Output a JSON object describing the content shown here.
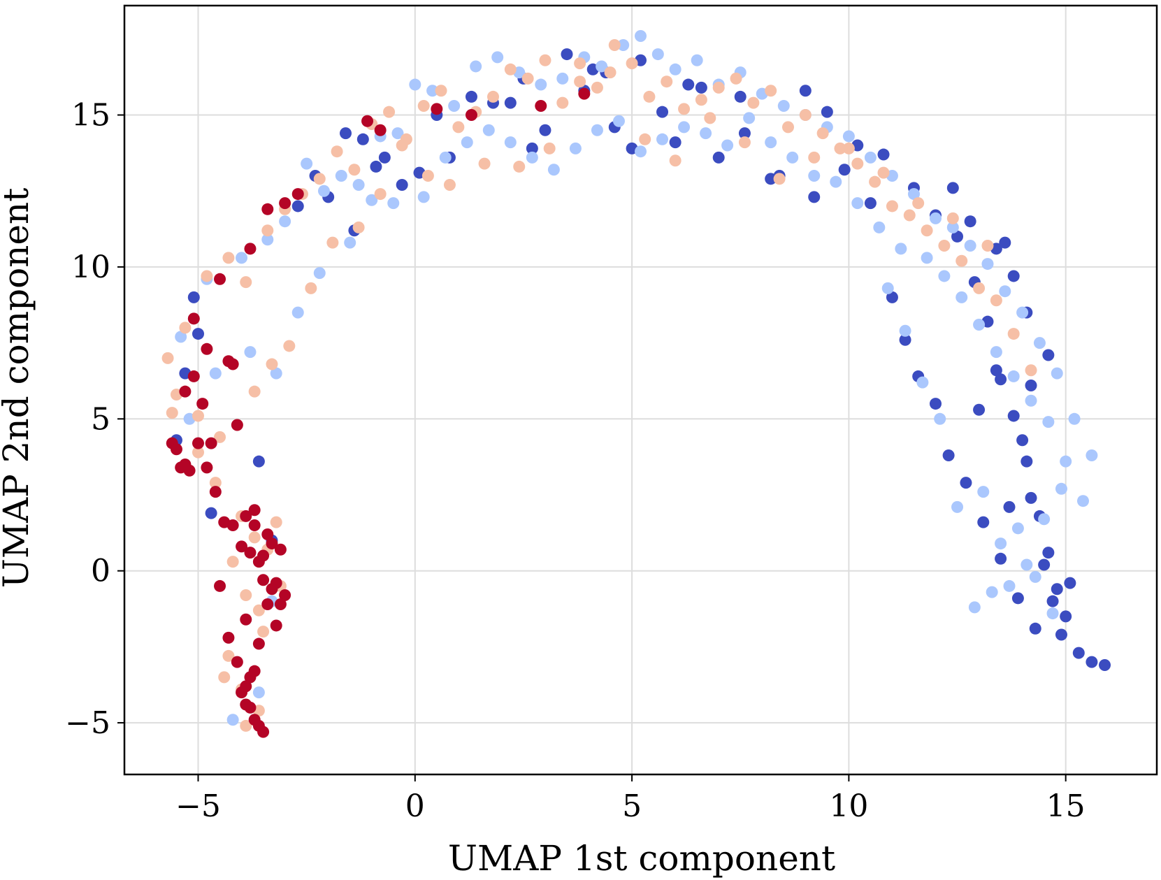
{
  "chart_data": {
    "type": "scatter",
    "title": "",
    "xlabel": "UMAP 1st component",
    "ylabel": "UMAP 2nd component",
    "xlim": [
      -6.7,
      17.1
    ],
    "ylim": [
      -6.7,
      18.6
    ],
    "grid": true,
    "legend": "none",
    "xticks": [
      -5,
      0,
      5,
      10,
      15
    ],
    "xtick_labels": [
      "−5",
      "0",
      "5",
      "10",
      "15"
    ],
    "yticks": [
      -5,
      0,
      5,
      10,
      15
    ],
    "ytick_labels": [
      "−5",
      "0",
      "5",
      "10",
      "15"
    ],
    "series": [
      {
        "name": "dark-blue",
        "color": "#3b4cc0",
        "x": [
          -5.0,
          -5.1,
          -3.6,
          -2.7,
          -2.3,
          -1.6,
          -1.2,
          -0.9,
          -0.3,
          0.5,
          1.3,
          2.2,
          2.7,
          3.5,
          4.1,
          4.6,
          5.2,
          6.0,
          6.3,
          7.0,
          7.5,
          8.2,
          9.0,
          9.5,
          10.2,
          10.8,
          11.5,
          12.0,
          12.5,
          12.9,
          13.2,
          13.5,
          13.8,
          14.0,
          14.2,
          14.4,
          14.6,
          14.8,
          15.0,
          15.3,
          15.6,
          15.9,
          14.3,
          13.9,
          13.5,
          13.1,
          12.7,
          12.3,
          12.0,
          11.6,
          11.3,
          11.0,
          10.5,
          9.9,
          -5.3,
          -5.5,
          -4.7,
          -3.3,
          -2.0,
          -1.4,
          -0.7,
          0.1,
          0.8,
          1.8,
          2.5,
          3.0,
          3.9,
          4.4,
          5.0,
          5.7,
          6.6,
          7.6,
          8.4,
          9.2,
          13.0,
          13.4,
          13.7,
          14.1,
          14.5,
          14.7,
          14.9,
          15.1,
          14.1,
          13.8,
          13.4,
          14.6,
          14.2,
          13.6,
          12.8,
          12.4
        ],
        "y": [
          7.8,
          9.0,
          3.6,
          12.0,
          13.0,
          14.4,
          14.2,
          13.3,
          12.7,
          15.0,
          15.6,
          15.4,
          13.9,
          17.0,
          16.5,
          14.6,
          16.8,
          14.1,
          16.0,
          13.6,
          15.6,
          12.9,
          15.8,
          15.1,
          14.0,
          13.7,
          12.6,
          11.7,
          11.0,
          9.5,
          8.2,
          6.3,
          5.1,
          4.3,
          2.4,
          1.8,
          0.6,
          -0.6,
          -1.5,
          -2.7,
          -3.0,
          -3.1,
          -1.9,
          -0.9,
          0.4,
          1.6,
          2.9,
          3.8,
          5.5,
          6.4,
          7.6,
          9.0,
          12.1,
          13.2,
          6.5,
          4.3,
          1.9,
          1.0,
          12.3,
          11.2,
          13.6,
          13.1,
          13.6,
          15.4,
          16.2,
          14.5,
          15.8,
          16.4,
          13.9,
          15.1,
          15.9,
          14.4,
          13.0,
          12.3,
          5.3,
          6.6,
          2.1,
          3.6,
          0.2,
          -1.0,
          -2.1,
          -0.4,
          8.5,
          9.7,
          10.6,
          7.1,
          6.1,
          10.8,
          11.5,
          12.6
        ]
      },
      {
        "name": "light-blue",
        "color": "#aac7fd",
        "x": [
          -5.4,
          -4.8,
          -4.0,
          -3.4,
          -3.0,
          -2.5,
          -2.1,
          -1.7,
          -1.3,
          -0.8,
          -0.4,
          0.0,
          0.4,
          0.9,
          1.4,
          1.9,
          2.4,
          2.9,
          3.4,
          3.9,
          4.3,
          4.8,
          5.2,
          5.6,
          6.0,
          6.5,
          7.0,
          7.5,
          8.0,
          8.5,
          9.0,
          9.5,
          10.0,
          10.5,
          11.0,
          11.5,
          12.0,
          12.4,
          12.8,
          13.2,
          13.6,
          14.0,
          14.4,
          14.8,
          15.2,
          15.6,
          14.9,
          14.5,
          14.1,
          13.7,
          13.3,
          12.9,
          12.5,
          12.1,
          11.7,
          11.3,
          10.9,
          -5.2,
          -4.6,
          -3.8,
          -3.2,
          -2.7,
          -2.2,
          -1.5,
          -1.0,
          -0.5,
          0.2,
          0.7,
          1.2,
          1.7,
          2.2,
          2.7,
          3.2,
          3.7,
          4.2,
          4.7,
          5.2,
          5.7,
          6.2,
          6.7,
          7.2,
          7.7,
          8.2,
          8.7,
          9.2,
          9.7,
          10.2,
          10.7,
          11.2,
          11.8,
          12.2,
          12.6,
          13.0,
          13.4,
          13.8,
          14.2,
          14.6,
          15.0,
          15.4,
          13.9,
          14.3,
          14.7,
          13.5,
          13.1,
          -3.6,
          -3.8,
          -3.3,
          -4.2
        ],
        "y": [
          7.7,
          9.6,
          10.3,
          10.9,
          11.5,
          13.4,
          12.5,
          13.0,
          12.7,
          14.3,
          14.4,
          16.0,
          15.8,
          15.3,
          16.6,
          16.9,
          16.4,
          16.0,
          16.2,
          16.9,
          16.6,
          17.3,
          17.6,
          17.0,
          16.5,
          16.8,
          16.0,
          16.4,
          15.7,
          15.3,
          15.0,
          14.6,
          14.3,
          13.6,
          13.0,
          12.4,
          11.6,
          11.3,
          10.7,
          10.1,
          9.2,
          8.5,
          7.5,
          6.5,
          5.0,
          3.8,
          2.7,
          1.7,
          0.2,
          -0.5,
          -0.7,
          -1.2,
          2.1,
          5.0,
          6.2,
          7.9,
          9.3,
          5.0,
          6.5,
          7.2,
          6.5,
          8.5,
          9.8,
          10.8,
          12.2,
          12.1,
          12.3,
          13.6,
          14.1,
          14.5,
          14.1,
          13.6,
          13.2,
          13.9,
          14.5,
          14.8,
          13.8,
          14.2,
          14.6,
          14.4,
          14.0,
          14.9,
          14.1,
          13.6,
          13.0,
          12.8,
          12.1,
          11.3,
          10.6,
          10.3,
          9.7,
          9.0,
          8.1,
          7.2,
          6.4,
          5.6,
          4.9,
          3.6,
          2.3,
          1.4,
          -0.2,
          -1.4,
          0.9,
          2.6,
          -4.0,
          -3.5,
          -1.0,
          -4.9
        ]
      },
      {
        "name": "light-salmon",
        "color": "#f6bfa6",
        "x": [
          -5.7,
          -5.3,
          -4.8,
          -4.3,
          -3.9,
          -3.4,
          -3.0,
          -2.6,
          -2.2,
          -1.8,
          -1.4,
          -1.0,
          -0.6,
          -0.2,
          0.2,
          0.6,
          1.0,
          1.4,
          1.8,
          2.2,
          2.6,
          3.0,
          3.4,
          3.8,
          4.2,
          4.6,
          5.0,
          5.4,
          5.8,
          6.2,
          6.6,
          7.0,
          7.4,
          7.8,
          8.2,
          8.6,
          9.0,
          9.4,
          9.8,
          10.2,
          10.6,
          11.0,
          11.4,
          11.8,
          12.2,
          12.6,
          13.0,
          13.4,
          13.8,
          14.2,
          -5.5,
          -5.0,
          -4.5,
          -4.1,
          -3.7,
          -3.3,
          -2.9,
          -2.4,
          -1.9,
          -1.3,
          -0.8,
          -0.3,
          0.3,
          0.8,
          1.6,
          2.4,
          3.1,
          3.8,
          4.5,
          5.3,
          6.0,
          6.8,
          7.6,
          8.4,
          9.2,
          10.0,
          10.8,
          11.6,
          12.4,
          13.2,
          -4.0,
          -3.7,
          -3.4,
          -3.1,
          -4.2,
          -3.9,
          -3.6,
          -3.5,
          -4.4,
          -4.0,
          -3.2,
          -5.6,
          -5.0,
          -4.6,
          -3.9,
          -3.6,
          -4.3
        ],
        "y": [
          7.0,
          8.0,
          9.7,
          10.3,
          9.5,
          11.2,
          11.9,
          12.4,
          12.9,
          13.8,
          13.2,
          14.7,
          15.1,
          14.2,
          15.3,
          15.8,
          14.6,
          15.1,
          15.6,
          16.5,
          16.2,
          16.8,
          15.4,
          16.7,
          15.9,
          17.3,
          16.7,
          15.6,
          16.1,
          15.2,
          15.5,
          15.9,
          16.2,
          15.4,
          15.8,
          14.6,
          15.0,
          14.4,
          13.9,
          13.4,
          12.8,
          12.0,
          11.7,
          11.2,
          10.7,
          10.2,
          9.3,
          8.9,
          7.8,
          6.6,
          5.8,
          5.1,
          4.4,
          4.8,
          5.9,
          6.8,
          7.4,
          9.3,
          10.8,
          11.3,
          12.4,
          14.0,
          13.0,
          12.7,
          13.4,
          13.3,
          13.9,
          16.1,
          16.4,
          14.2,
          13.5,
          14.9,
          14.1,
          12.9,
          13.6,
          13.9,
          13.1,
          12.1,
          11.6,
          10.7,
          1.8,
          1.1,
          0.7,
          -0.5,
          0.3,
          -0.8,
          -1.3,
          -2.0,
          -3.5,
          -3.9,
          1.6,
          5.2,
          3.9,
          2.9,
          -5.1,
          -4.6,
          -2.8
        ]
      },
      {
        "name": "dark-red",
        "color": "#b40426",
        "x": [
          -5.6,
          -5.4,
          -5.2,
          -5.0,
          -4.8,
          -4.6,
          -4.4,
          -4.2,
          -4.0,
          -3.9,
          -3.8,
          -3.7,
          -3.6,
          -3.5,
          -3.4,
          -3.3,
          -3.2,
          -3.1,
          -3.0,
          -3.2,
          -3.4,
          -3.6,
          -3.7,
          -3.8,
          -3.9,
          -4.0,
          -3.8,
          -3.6,
          -3.5,
          -3.7,
          -3.9,
          -4.1,
          -4.3,
          -4.5,
          -4.7,
          -4.9,
          -5.1,
          -5.3,
          -5.5,
          -5.3,
          -5.1,
          -4.8,
          -4.5,
          -4.2,
          -3.8,
          -3.4,
          -3.0,
          -2.7,
          0.5,
          2.9,
          3.9,
          -1.1,
          -0.8,
          1.3,
          -3.7,
          -3.5,
          -3.3,
          -3.1,
          -3.9,
          -4.1,
          -4.3
        ],
        "y": [
          4.2,
          3.4,
          3.3,
          4.2,
          3.4,
          2.6,
          1.6,
          1.5,
          0.8,
          1.8,
          0.6,
          1.5,
          0.3,
          -0.3,
          1.2,
          0.9,
          -0.4,
          0.7,
          -0.8,
          -1.8,
          -1.1,
          -2.4,
          -3.3,
          -3.5,
          -3.8,
          -4.0,
          -4.5,
          -5.1,
          -5.3,
          -4.9,
          -4.4,
          -3.0,
          -2.2,
          -0.5,
          4.2,
          5.5,
          6.4,
          5.9,
          4.0,
          3.5,
          8.3,
          7.3,
          9.6,
          6.8,
          10.6,
          11.9,
          12.1,
          12.4,
          15.2,
          15.3,
          15.7,
          14.8,
          14.5,
          15.0,
          2.0,
          0.5,
          -0.6,
          -1.1,
          -1.6,
          4.8,
          6.9
        ]
      }
    ]
  }
}
